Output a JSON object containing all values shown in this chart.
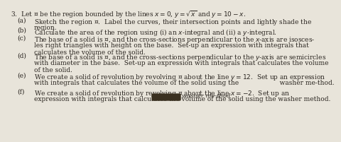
{
  "background_color": "#e8e4da",
  "text_color": "#2a2520",
  "font_size": 6.5,
  "header": "3.  Let $\\mathcal{R}$ be the region bounded by the lines $x = 0$, $y = \\sqrt{x}$ and $y = 10 - x$.",
  "items": [
    {
      "label": "(a)",
      "line1": "Sketch the region $\\mathcal{R}$.  Label the curves, their intersection points and lightly shade the",
      "line2": "region."
    },
    {
      "label": "(b)",
      "line1": "Calculate the area of the region using (i) an $x$-integral and (ii) a $y$-integral.",
      "line2": ""
    },
    {
      "label": "(c)",
      "line1": "The base of a solid is $\\mathcal{R}$, and the cross-sections perpendicular to the $x$-axis are isosces-",
      "line2": "les right triangles with height on the base.  Set-up an expression with integrals that",
      "line3": "calculates the volume of the solid."
    },
    {
      "label": "(d)",
      "line1": "The base of a solid is $\\mathcal{R}$, and the cross-sections perpendicular to the $y$-axis are semicircles",
      "line2": "with diameter in the base.  Set-up an expression with integrals that calculates the volume",
      "line3": "of the solid."
    },
    {
      "label": "(e)",
      "line1": "We create a solid of revolution by revolving $\\mathcal{R}$ about the line $y = 12$.  Set up an expression",
      "line2": "with integrals that calculates the volume of the solid using the                    washer me-thod."
    },
    {
      "label": "(f)",
      "line1": "We create a solid of revolution by revolving $\\mathcal{R}$ about the line $x = -2$.  Set up an",
      "line2": "expression with integrals that calculates the volume of the solid using the washer method."
    }
  ]
}
